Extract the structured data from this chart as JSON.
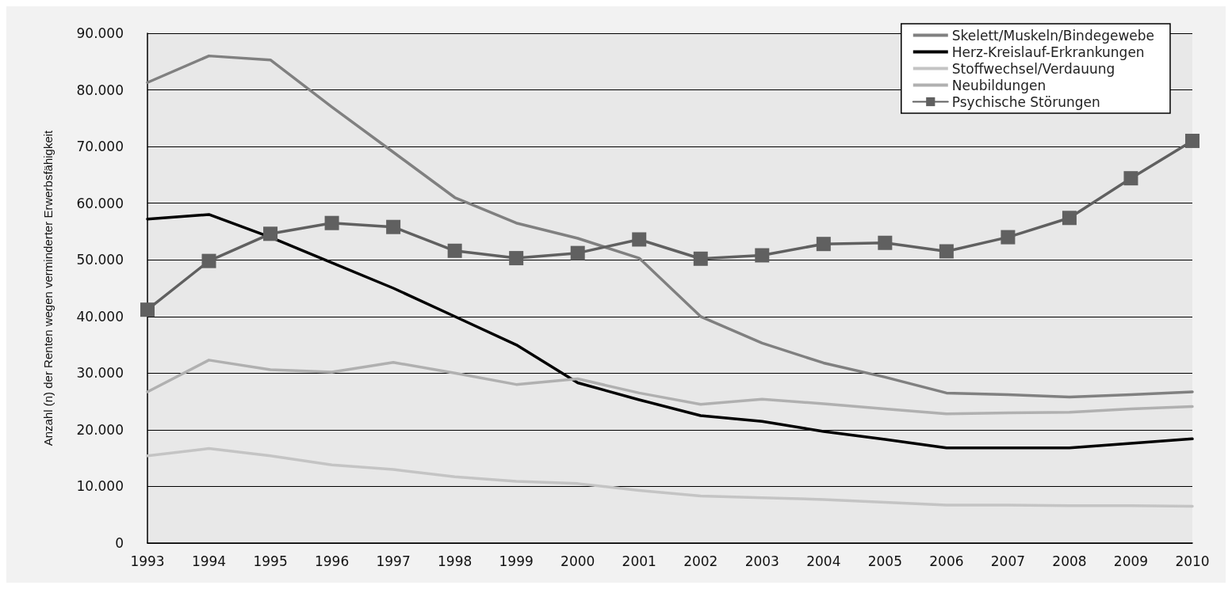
{
  "chart_data": {
    "type": "line",
    "ylabel": "Anzahl (n) der Renten wegen verminderter Erwerbsfähigkeit",
    "categories": [
      "1993",
      "1994",
      "1995",
      "1996",
      "1997",
      "1998",
      "1999",
      "2000",
      "2001",
      "2002",
      "2003",
      "2004",
      "2005",
      "2006",
      "2007",
      "2008",
      "2009",
      "2010"
    ],
    "series": [
      {
        "name": "Skelett/Muskeln/Bindegewebe",
        "color": "#808080",
        "values": [
          81300,
          86000,
          85300,
          77000,
          69000,
          61000,
          56500,
          53800,
          50300,
          40000,
          35300,
          31800,
          29300,
          26500,
          26200,
          25800,
          26200,
          26700
        ]
      },
      {
        "name": "Herz-Kreislauf-Erkrankungen",
        "color": "#000000",
        "values": [
          57200,
          58000,
          54000,
          49500,
          45000,
          40000,
          35000,
          28300,
          25300,
          22500,
          21500,
          19700,
          18300,
          16800,
          16800,
          16800,
          17600,
          18400
        ]
      },
      {
        "name": "Stoffwechsel/Verdauung",
        "color": "#c4c4c4",
        "values": [
          15400,
          16700,
          15400,
          13800,
          13000,
          11700,
          10900,
          10500,
          9300,
          8300,
          8000,
          7700,
          7200,
          6700,
          6700,
          6600,
          6600,
          6500
        ]
      },
      {
        "name": "Neubildungen",
        "color": "#b0b0b0",
        "values": [
          26700,
          32300,
          30600,
          30200,
          31900,
          30000,
          28000,
          29000,
          26500,
          24500,
          25400,
          24600,
          23700,
          22800,
          23000,
          23100,
          23700,
          24100
        ]
      },
      {
        "name": "Psychische Störungen",
        "color": "#606060",
        "marker": "square",
        "values": [
          41200,
          49800,
          54600,
          56500,
          55800,
          51600,
          50300,
          51200,
          53600,
          50200,
          50800,
          52800,
          53000,
          51500,
          54000,
          57400,
          64400,
          71000
        ]
      }
    ],
    "ylim": [
      0,
      90000
    ],
    "yticks": [
      0,
      {
        "value": 10000,
        "label": "10.000"
      },
      {
        "value": 20000,
        "label": "20.000"
      },
      {
        "value": 30000,
        "label": "30.000"
      },
      {
        "value": 40000,
        "label": "40.000"
      },
      {
        "value": 50000,
        "label": "50.000"
      },
      {
        "value": 60000,
        "label": "60.000"
      },
      {
        "value": 70000,
        "label": "70.000"
      },
      {
        "value": 80000,
        "label": "80.000"
      },
      {
        "value": 90000,
        "label": "90.000"
      }
    ],
    "grid": "y",
    "legend": "top right",
    "line_style": "solid"
  }
}
